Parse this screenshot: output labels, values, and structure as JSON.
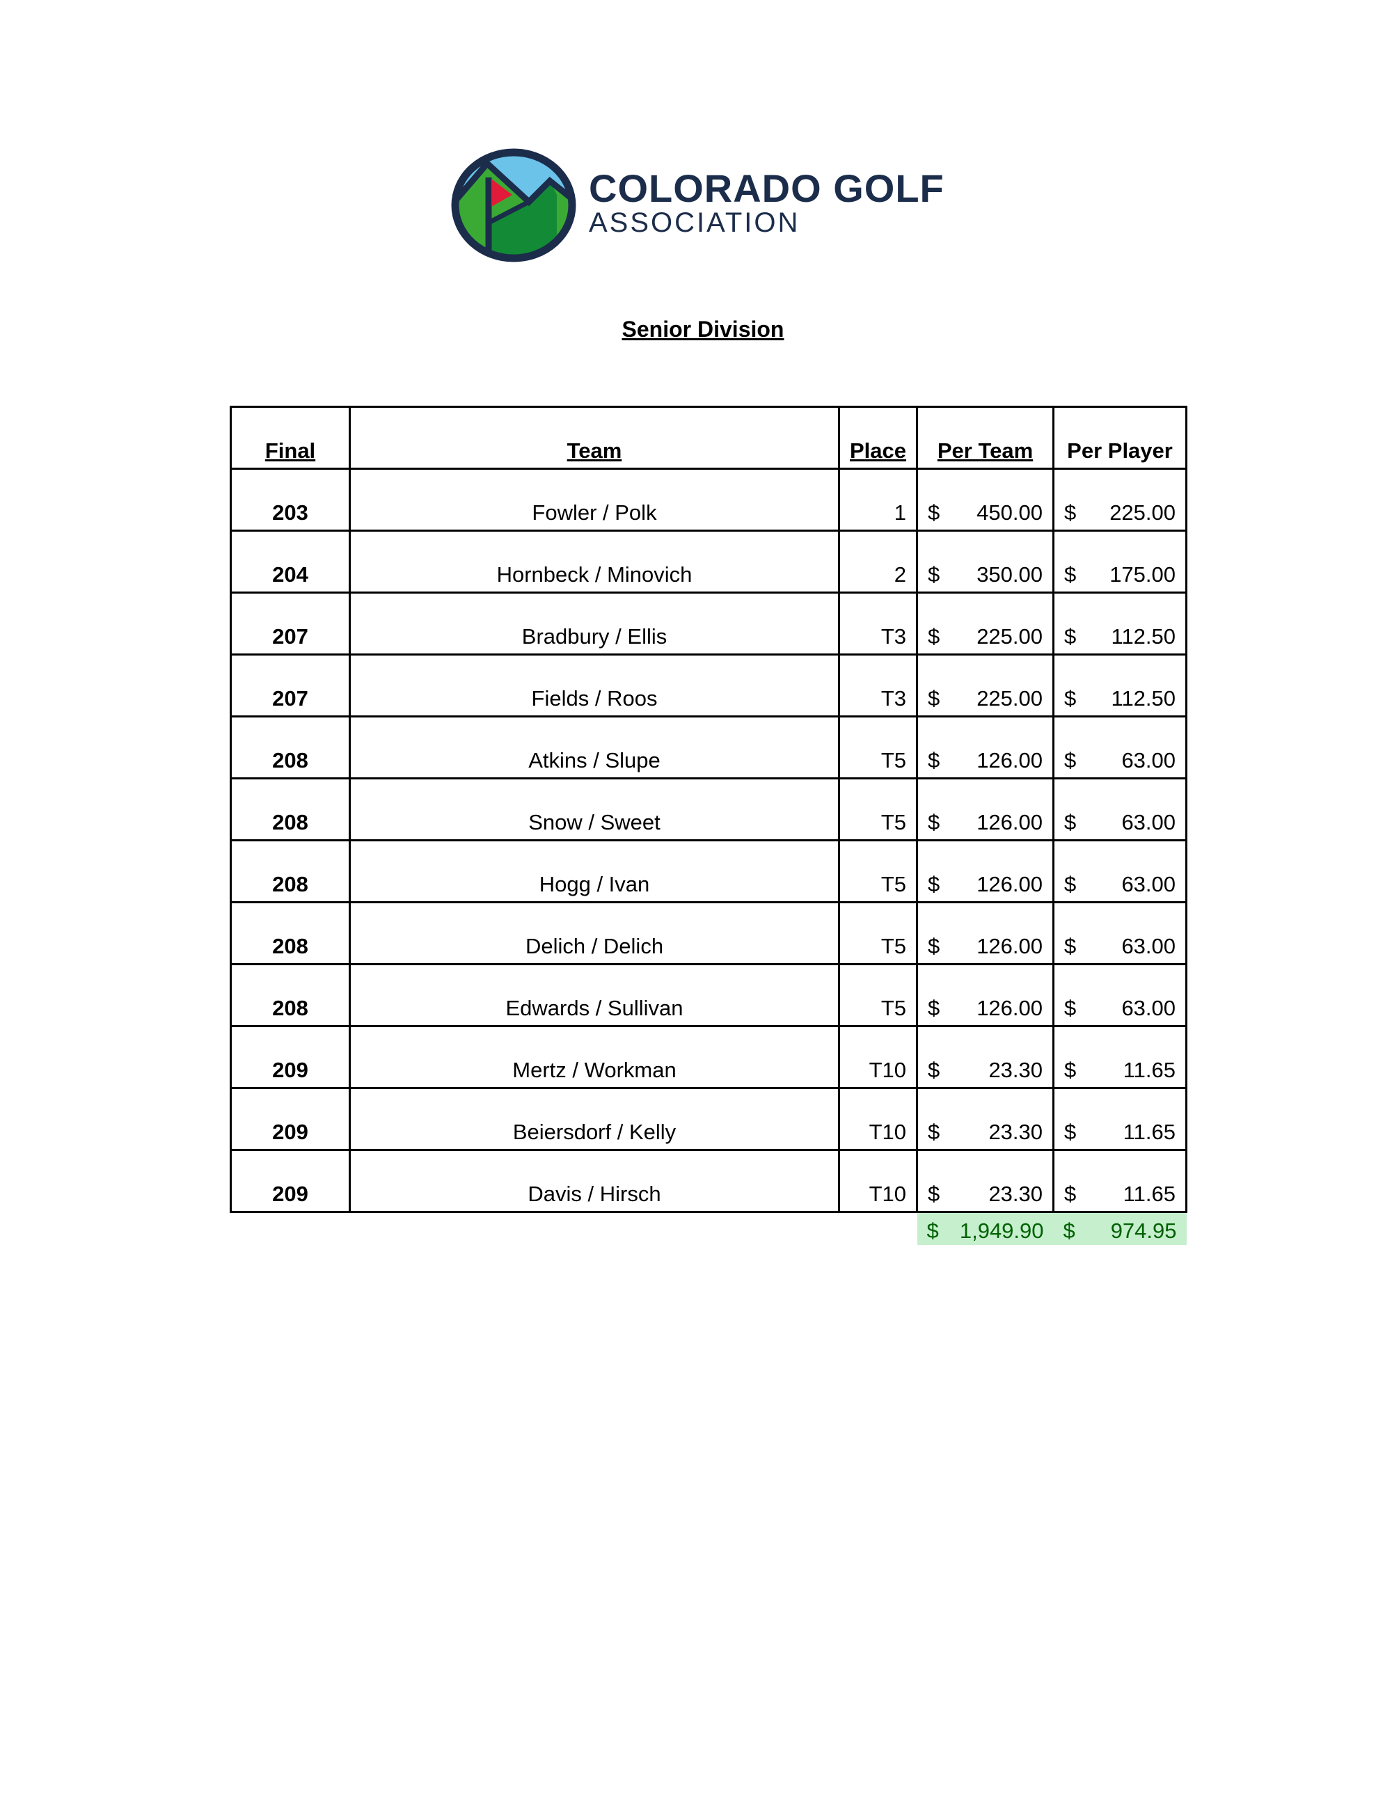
{
  "logo": {
    "line1": "COLORADO GOLF",
    "line2": "ASSOCIATION",
    "colors": {
      "navy": "#1b2d4a",
      "sky": "#6cc3ea",
      "green_light": "#3aaa35",
      "green_dark": "#138a36",
      "flag": "#e31b3b"
    }
  },
  "title": "Senior Division",
  "table": {
    "headers": {
      "final": "Final",
      "team": "Team",
      "place": "Place",
      "per_team": "Per Team",
      "per_player": "Per Player"
    },
    "currency": "$",
    "rows": [
      {
        "final": "203",
        "team": "Fowler / Polk",
        "place": "1",
        "per_team": "450.00",
        "per_player": "225.00"
      },
      {
        "final": "204",
        "team": "Hornbeck / Minovich",
        "place": "2",
        "per_team": "350.00",
        "per_player": "175.00"
      },
      {
        "final": "207",
        "team": "Bradbury / Ellis",
        "place": "T3",
        "per_team": "225.00",
        "per_player": "112.50"
      },
      {
        "final": "207",
        "team": "Fields / Roos",
        "place": "T3",
        "per_team": "225.00",
        "per_player": "112.50"
      },
      {
        "final": "208",
        "team": "Atkins / Slupe",
        "place": "T5",
        "per_team": "126.00",
        "per_player": "63.00"
      },
      {
        "final": "208",
        "team": "Snow / Sweet",
        "place": "T5",
        "per_team": "126.00",
        "per_player": "63.00"
      },
      {
        "final": "208",
        "team": "Hogg / Ivan",
        "place": "T5",
        "per_team": "126.00",
        "per_player": "63.00"
      },
      {
        "final": "208",
        "team": "Delich / Delich",
        "place": "T5",
        "per_team": "126.00",
        "per_player": "63.00"
      },
      {
        "final": "208",
        "team": "Edwards / Sullivan",
        "place": "T5",
        "per_team": "126.00",
        "per_player": "63.00"
      },
      {
        "final": "209",
        "team": "Mertz / Workman",
        "place": "T10",
        "per_team": "23.30",
        "per_player": "11.65"
      },
      {
        "final": "209",
        "team": "Beiersdorf / Kelly",
        "place": "T10",
        "per_team": "23.30",
        "per_player": "11.65"
      },
      {
        "final": "209",
        "team": "Davis / Hirsch",
        "place": "T10",
        "per_team": "23.30",
        "per_player": "11.65"
      }
    ],
    "totals": {
      "per_team": "1,949.90",
      "per_player": "974.95",
      "highlight": "#c6efce",
      "text_color": "#006100"
    }
  }
}
